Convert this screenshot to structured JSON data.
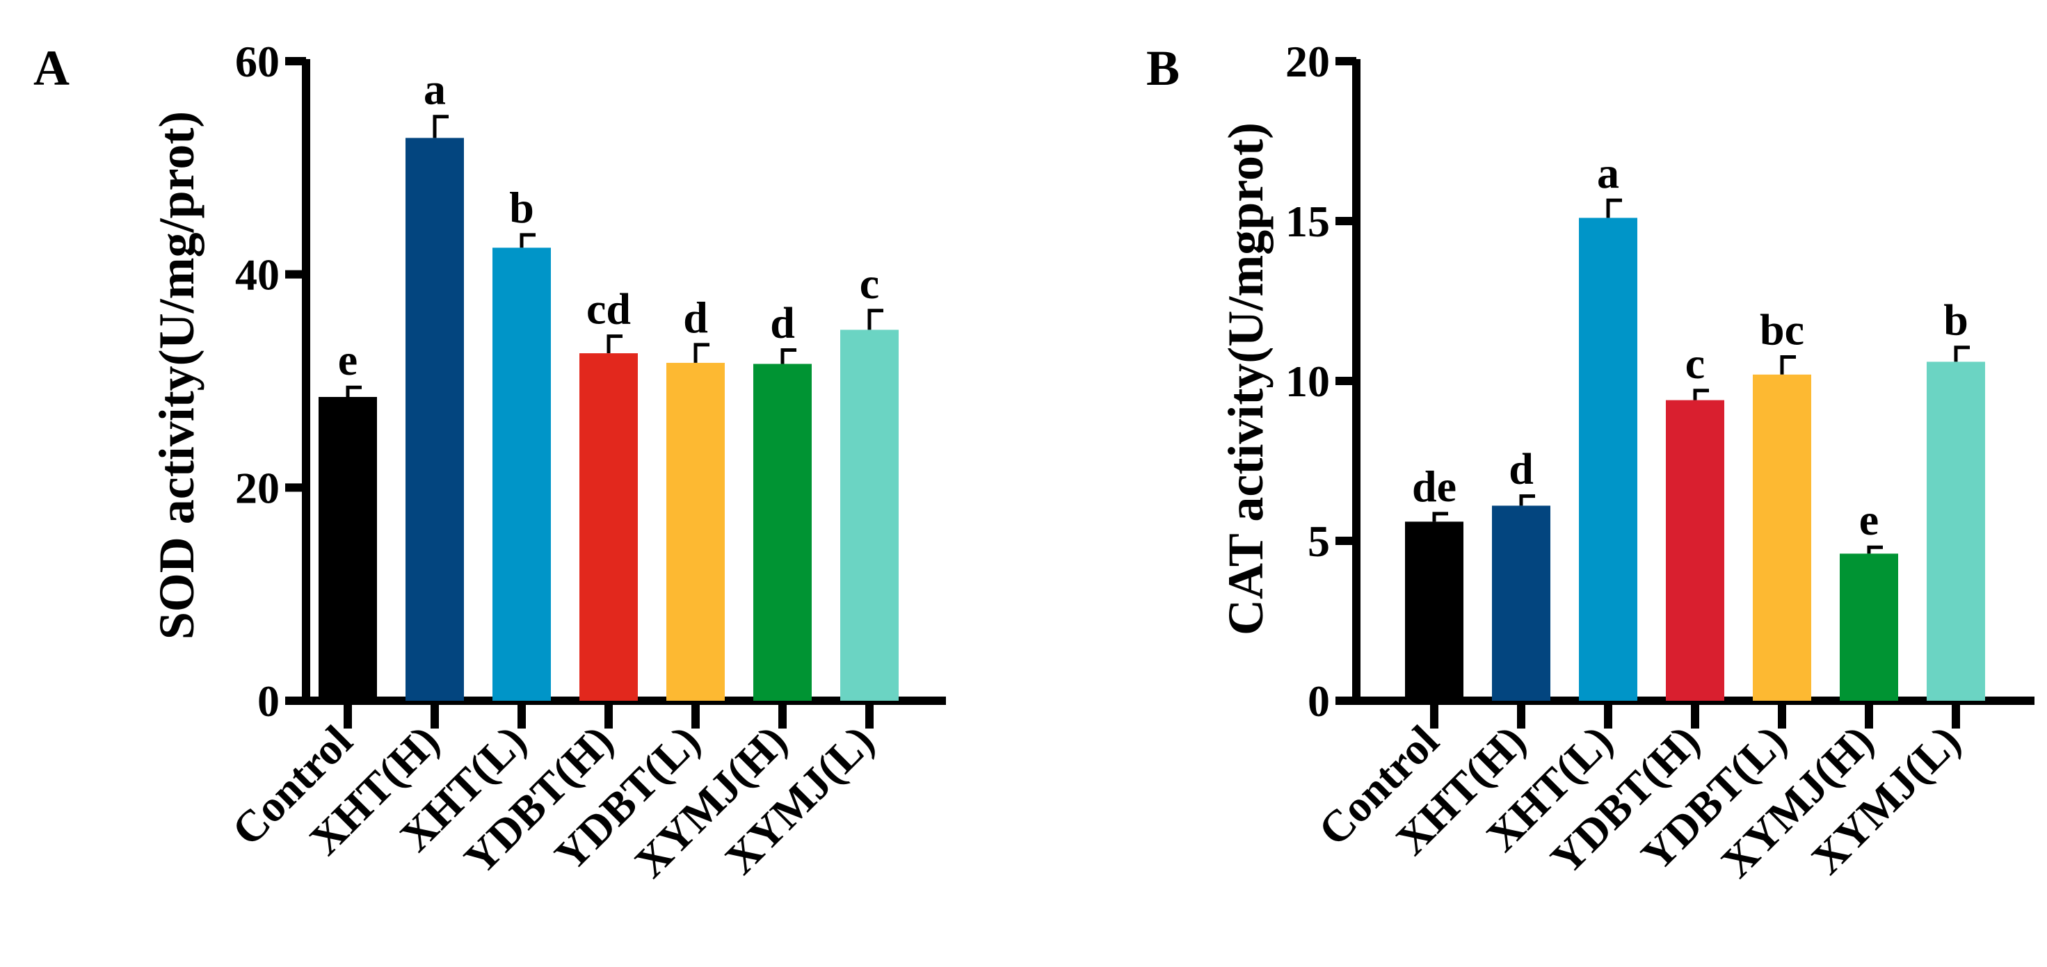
{
  "chart_data": [
    {
      "type": "bar",
      "panel_label": "A",
      "ylabel": "SOD activity(U/mg/prot)",
      "xlabel": "",
      "ylim": [
        0,
        60
      ],
      "yticks": [
        0,
        20,
        40,
        60
      ],
      "categories": [
        "Control",
        "XHT(H)",
        "XHT(L)",
        "YDBT(H)",
        "YDBT(L)",
        "XYMJ(H)",
        "XYMJ(L)"
      ],
      "values": [
        28.5,
        52.8,
        42.5,
        32.6,
        31.7,
        31.6,
        34.8
      ],
      "errors": [
        0.9,
        2.0,
        1.2,
        1.6,
        1.7,
        1.3,
        1.8
      ],
      "significance": [
        "e",
        "a",
        "b",
        "cd",
        "d",
        "d",
        "c"
      ],
      "colors": [
        "#000000",
        "#03457f",
        "#0095c8",
        "#e2281d",
        "#fdb932",
        "#009433",
        "#6bd4c3"
      ]
    },
    {
      "type": "bar",
      "panel_label": "B",
      "ylabel": "CAT activity(U/mgprot)",
      "xlabel": "",
      "ylim": [
        0,
        20
      ],
      "yticks": [
        0,
        5,
        10,
        15,
        20
      ],
      "categories": [
        "Control",
        "XHT(H)",
        "XHT(L)",
        "YDBT(H)",
        "YDBT(L)",
        "XYMJ(H)",
        "XYMJ(L)"
      ],
      "values": [
        5.6,
        6.1,
        15.1,
        9.4,
        10.2,
        4.6,
        10.6
      ],
      "errors": [
        0.25,
        0.3,
        0.55,
        0.3,
        0.55,
        0.2,
        0.45
      ],
      "significance": [
        "de",
        "d",
        "a",
        "c",
        "bc",
        "e",
        "b"
      ],
      "colors": [
        "#000000",
        "#03457f",
        "#0095c8",
        "#d91f2f",
        "#fdb932",
        "#009433",
        "#6bd4c3"
      ]
    }
  ]
}
